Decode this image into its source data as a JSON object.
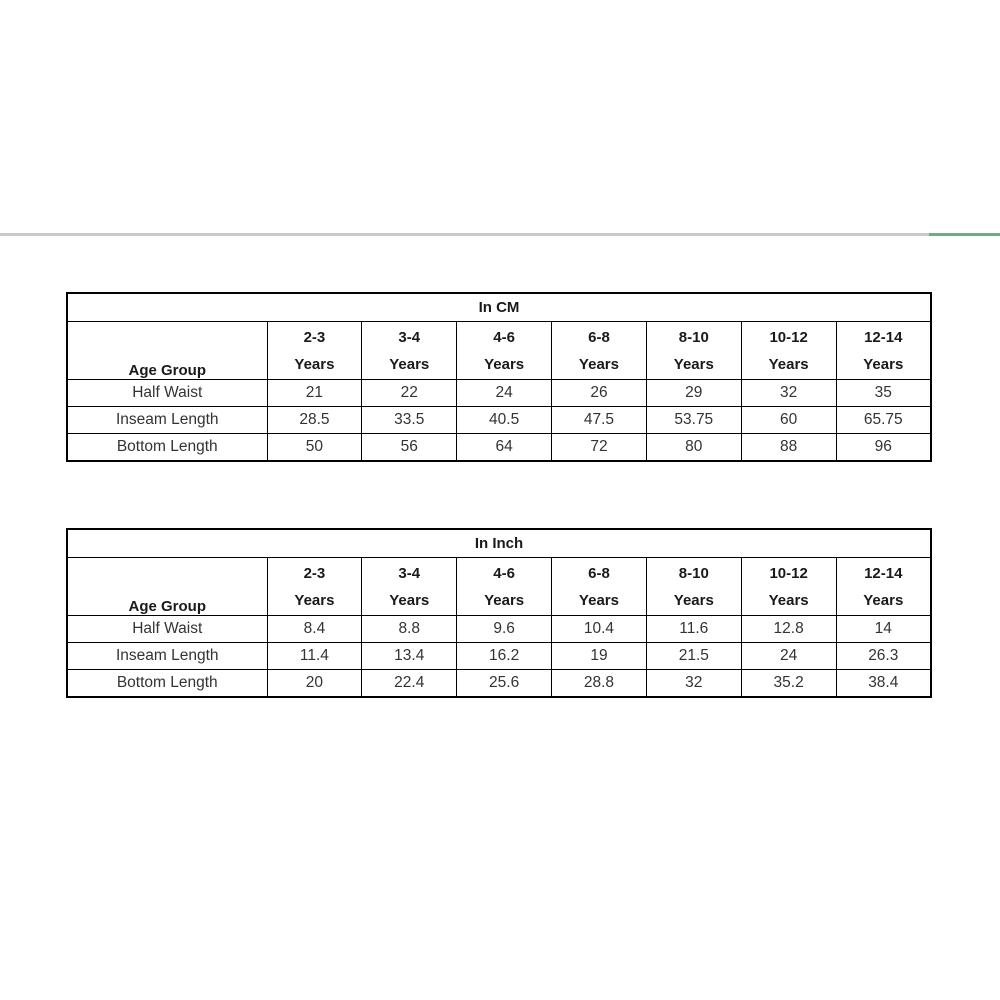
{
  "divider": {
    "gray_color": "#c9c9c9",
    "green_color": "#75a98b"
  },
  "colors": {
    "table_border": "#000000",
    "header_text": "#1a1a1a",
    "data_text": "#333333",
    "background": "#ffffff"
  },
  "chart_data": [
    {
      "type": "table",
      "title": "In CM",
      "corner_header": "Age Group",
      "columns": [
        {
          "range": "2-3",
          "suffix": "Years"
        },
        {
          "range": "3-4",
          "suffix": "Years"
        },
        {
          "range": "4-6",
          "suffix": "Years"
        },
        {
          "range": "6-8",
          "suffix": "Years"
        },
        {
          "range": "8-10",
          "suffix": "Years"
        },
        {
          "range": "10-12",
          "suffix": "Years"
        },
        {
          "range": "12-14",
          "suffix": "Years"
        }
      ],
      "rows": [
        {
          "label": "Half Waist",
          "values": [
            "21",
            "22",
            "24",
            "26",
            "29",
            "32",
            "35"
          ]
        },
        {
          "label": "Inseam Length",
          "values": [
            "28.5",
            "33.5",
            "40.5",
            "47.5",
            "53.75",
            "60",
            "65.75"
          ]
        },
        {
          "label": "Bottom Length",
          "values": [
            "50",
            "56",
            "64",
            "72",
            "80",
            "88",
            "96"
          ]
        }
      ]
    },
    {
      "type": "table",
      "title": "In Inch",
      "corner_header": "Age Group",
      "columns": [
        {
          "range": "2-3",
          "suffix": "Years"
        },
        {
          "range": "3-4",
          "suffix": "Years"
        },
        {
          "range": "4-6",
          "suffix": "Years"
        },
        {
          "range": "6-8",
          "suffix": "Years"
        },
        {
          "range": "8-10",
          "suffix": "Years"
        },
        {
          "range": "10-12",
          "suffix": "Years"
        },
        {
          "range": "12-14",
          "suffix": "Years"
        }
      ],
      "rows": [
        {
          "label": "Half Waist",
          "values": [
            "8.4",
            "8.8",
            "9.6",
            "10.4",
            "11.6",
            "12.8",
            "14"
          ]
        },
        {
          "label": "Inseam Length",
          "values": [
            "11.4",
            "13.4",
            "16.2",
            "19",
            "21.5",
            "24",
            "26.3"
          ]
        },
        {
          "label": "Bottom Length",
          "values": [
            "20",
            "22.4",
            "25.6",
            "28.8",
            "32",
            "35.2",
            "38.4"
          ]
        }
      ]
    }
  ]
}
